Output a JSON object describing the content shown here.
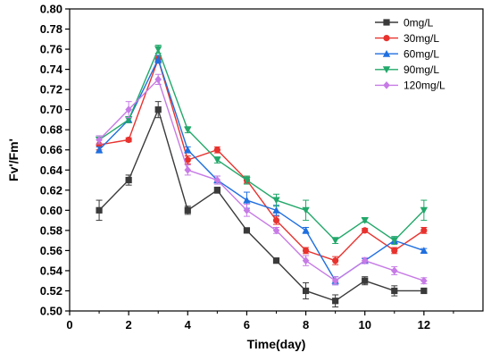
{
  "chart_data": {
    "type": "line",
    "xlabel": "Time(day)",
    "ylabel": "Fv'/Fm'",
    "xlim": [
      0,
      14
    ],
    "ylim": [
      0.5,
      0.8
    ],
    "xticks": [
      0,
      2,
      4,
      6,
      8,
      10,
      12
    ],
    "yticks": [
      0.5,
      0.52,
      0.54,
      0.56,
      0.58,
      0.6,
      0.62,
      0.64,
      0.66,
      0.68,
      0.7,
      0.72,
      0.74,
      0.76,
      0.78,
      0.8
    ],
    "x": [
      1,
      2,
      3,
      4,
      5,
      6,
      7,
      8,
      9,
      10,
      11,
      12
    ],
    "legend_position": "top-right",
    "grid": false,
    "series": [
      {
        "name": "0mg/L",
        "color": "#3a3a3a",
        "marker": "square",
        "values": [
          0.6,
          0.63,
          0.7,
          0.6,
          0.62,
          0.58,
          0.55,
          0.52,
          0.51,
          0.53,
          0.52,
          0.52
        ],
        "errors": [
          0.01,
          0.005,
          0.008,
          0.004,
          0.003,
          0.002,
          0.002,
          0.008,
          0.006,
          0.004,
          0.005,
          0.002
        ]
      },
      {
        "name": "30mg/L",
        "color": "#e8322e",
        "marker": "circle",
        "values": [
          0.665,
          0.67,
          0.75,
          0.65,
          0.66,
          0.63,
          0.59,
          0.56,
          0.55,
          0.58,
          0.56,
          0.58
        ],
        "errors": [
          0.005,
          0.002,
          0.003,
          0.004,
          0.003,
          0.003,
          0.004,
          0.003,
          0.004,
          0.002,
          0.003,
          0.003
        ]
      },
      {
        "name": "60mg/L",
        "color": "#1f6fe0",
        "marker": "triangle-up",
        "values": [
          0.66,
          0.69,
          0.75,
          0.66,
          0.63,
          0.61,
          0.6,
          0.58,
          0.53,
          0.55,
          0.57,
          0.56
        ],
        "errors": [
          0.003,
          0.003,
          0.004,
          0.003,
          0.004,
          0.008,
          0.005,
          0.003,
          0.004,
          0.002,
          0.003,
          0.002
        ]
      },
      {
        "name": "90mg/L",
        "color": "#22a86a",
        "marker": "triangle-down",
        "values": [
          0.67,
          0.69,
          0.76,
          0.68,
          0.65,
          0.63,
          0.61,
          0.6,
          0.57,
          0.59,
          0.57,
          0.6
        ],
        "errors": [
          0.004,
          0.003,
          0.004,
          0.003,
          0.003,
          0.004,
          0.006,
          0.01,
          0.003,
          0.002,
          0.004,
          0.01
        ]
      },
      {
        "name": "120mg/L",
        "color": "#c77be6",
        "marker": "diamond",
        "values": [
          0.67,
          0.7,
          0.73,
          0.64,
          0.63,
          0.6,
          0.58,
          0.55,
          0.53,
          0.55,
          0.54,
          0.53
        ],
        "errors": [
          0.004,
          0.008,
          0.005,
          0.005,
          0.004,
          0.006,
          0.003,
          0.005,
          0.004,
          0.003,
          0.004,
          0.003
        ]
      }
    ]
  }
}
